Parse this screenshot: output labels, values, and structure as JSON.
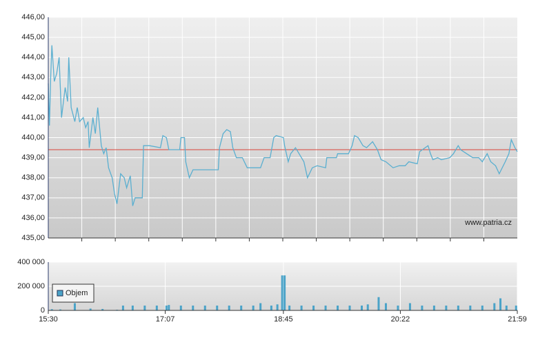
{
  "chart_data": [
    {
      "type": "line",
      "watermark": "www.patria.cz",
      "xlim": [
        "15:30",
        "21:59"
      ],
      "ylim": [
        435,
        446
      ],
      "yticks": [
        {
          "value": 435,
          "label": "435,00"
        },
        {
          "value": 436,
          "label": "436,00"
        },
        {
          "value": 437,
          "label": "437,00"
        },
        {
          "value": 438,
          "label": "438,00"
        },
        {
          "value": 439,
          "label": "439,00"
        },
        {
          "value": 440,
          "label": "440,00"
        },
        {
          "value": 441,
          "label": "441,00"
        },
        {
          "value": 442,
          "label": "442,00"
        },
        {
          "value": 443,
          "label": "443,00"
        },
        {
          "value": 444,
          "label": "444,00"
        },
        {
          "value": 445,
          "label": "445,00"
        },
        {
          "value": 446,
          "label": "446,00"
        }
      ],
      "grid": true,
      "reference_line": 439.4,
      "reference_color": "#d9443a",
      "x": [
        "15:30",
        "15:31",
        "15:32",
        "15:33",
        "15:35",
        "15:37",
        "15:39",
        "15:41",
        "15:44",
        "15:46",
        "15:47",
        "15:49",
        "15:52",
        "15:54",
        "15:56",
        "15:59",
        "16:01",
        "16:03",
        "16:04",
        "16:07",
        "16:09",
        "16:11",
        "16:14",
        "16:16",
        "16:18",
        "16:20",
        "16:23",
        "16:25",
        "16:27",
        "16:30",
        "16:33",
        "16:35",
        "16:38",
        "16:40",
        "16:42",
        "16:48",
        "16:49",
        "16:54",
        "17:03",
        "17:05",
        "17:08",
        "17:10",
        "17:19",
        "17:20",
        "17:23",
        "17:24",
        "17:27",
        "17:30",
        "17:42",
        "17:51",
        "17:52",
        "17:55",
        "17:58",
        "18:01",
        "18:03",
        "18:06",
        "18:11",
        "18:15",
        "18:26",
        "18:29",
        "18:34",
        "18:37",
        "18:39",
        "18:45",
        "18:46",
        "18:49",
        "18:51",
        "18:55",
        "18:58",
        "19:02",
        "19:05",
        "19:09",
        "19:13",
        "19:20",
        "19:21",
        "19:29",
        "19:30",
        "19:39",
        "19:42",
        "19:44",
        "19:47",
        "19:51",
        "19:54",
        "19:59",
        "20:03",
        "20:06",
        "20:10",
        "20:16",
        "20:21",
        "20:26",
        "20:29",
        "20:36",
        "20:38",
        "20:45",
        "20:47",
        "20:49",
        "20:53",
        "20:56",
        "21:03",
        "21:06",
        "21:10",
        "21:12",
        "21:17",
        "21:22",
        "21:27",
        "21:30",
        "21:34",
        "21:37",
        "21:41",
        "21:44",
        "21:49",
        "21:52",
        "21:54",
        "21:57",
        "21:59"
      ],
      "series": [
        {
          "color": "#5aafd0",
          "values": [
            442.7,
            440.6,
            443.0,
            444.6,
            442.8,
            443.2,
            444.0,
            441.0,
            442.5,
            441.8,
            444.0,
            441.5,
            440.8,
            441.5,
            440.8,
            441.0,
            440.5,
            440.8,
            439.5,
            441.0,
            440.2,
            441.5,
            439.6,
            439.2,
            439.5,
            438.5,
            438.0,
            437.2,
            436.7,
            438.2,
            438.0,
            437.5,
            438.1,
            436.6,
            437.0,
            437.0,
            439.6,
            439.6,
            439.5,
            440.1,
            440.0,
            439.4,
            439.4,
            440.0,
            440.0,
            438.8,
            438.0,
            438.4,
            438.4,
            438.4,
            439.5,
            440.2,
            440.4,
            440.3,
            439.5,
            439.0,
            439.0,
            438.5,
            438.5,
            439.0,
            439.0,
            440.0,
            440.1,
            440.0,
            439.6,
            438.8,
            439.2,
            439.5,
            439.2,
            438.8,
            438.0,
            438.5,
            438.6,
            438.5,
            439.0,
            439.0,
            439.2,
            439.2,
            439.6,
            440.1,
            440.0,
            439.6,
            439.5,
            439.8,
            439.4,
            438.9,
            438.8,
            438.5,
            438.6,
            438.6,
            438.8,
            438.7,
            439.3,
            439.6,
            439.2,
            438.9,
            439.0,
            438.9,
            439.0,
            439.2,
            439.6,
            439.4,
            439.2,
            439.0,
            439.0,
            438.8,
            439.2,
            438.8,
            438.6,
            438.2,
            438.8,
            439.2,
            439.9,
            439.5,
            439.3
          ]
        }
      ]
    },
    {
      "type": "bar",
      "xlim": [
        "15:30",
        "21:59"
      ],
      "xticks": [
        "15:30",
        "17:07",
        "18:45",
        "20:22",
        "21:59"
      ],
      "ylim": [
        0,
        400000
      ],
      "yticks": [
        0,
        {
          "value": 200000,
          "label": "200 000"
        },
        {
          "value": 400000,
          "label": "400 000"
        }
      ],
      "grid": true,
      "legend": "lower-left",
      "x": [
        "15:33",
        "15:40",
        "15:52",
        "16:05",
        "16:15",
        "16:27",
        "16:32",
        "16:40",
        "16:50",
        "17:00",
        "17:08",
        "17:10",
        "17:20",
        "17:30",
        "17:40",
        "17:50",
        "18:00",
        "18:10",
        "18:20",
        "18:26",
        "18:35",
        "18:40",
        "18:44",
        "18:46",
        "18:50",
        "19:00",
        "19:10",
        "19:20",
        "19:30",
        "19:40",
        "19:50",
        "19:55",
        "20:04",
        "20:10",
        "20:20",
        "20:30",
        "20:40",
        "20:50",
        "21:00",
        "21:10",
        "21:20",
        "21:30",
        "21:40",
        "21:45",
        "21:50",
        "21:58"
      ],
      "series": [
        {
          "name": "Objem",
          "color": "#4ba3c8",
          "values": [
            10000,
            8000,
            60000,
            15000,
            12000,
            5000,
            40000,
            40000,
            40000,
            40000,
            40000,
            45000,
            40000,
            40000,
            40000,
            40000,
            40000,
            40000,
            40000,
            60000,
            40000,
            50000,
            290000,
            290000,
            40000,
            40000,
            40000,
            40000,
            40000,
            40000,
            40000,
            50000,
            110000,
            60000,
            40000,
            60000,
            40000,
            40000,
            40000,
            40000,
            40000,
            40000,
            60000,
            100000,
            40000,
            40000
          ]
        }
      ]
    }
  ]
}
